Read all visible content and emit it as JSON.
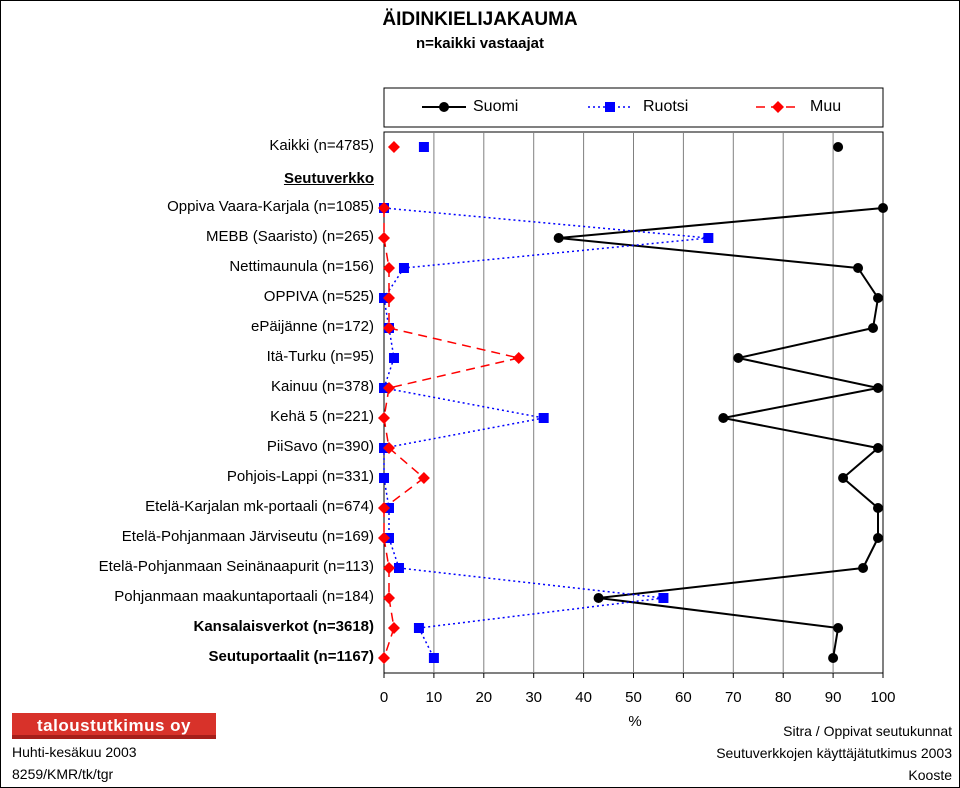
{
  "title": "ÄIDINKIELIJAKAUMA",
  "subtitle": "n=kaikki vastaajat",
  "legend": [
    "Suomi",
    "Ruotsi",
    "Muu"
  ],
  "section_heading": "Seutuverkko",
  "xlabel": "%",
  "x_ticks": [
    "0",
    "10",
    "20",
    "30",
    "40",
    "50",
    "60",
    "70",
    "80",
    "90",
    "100"
  ],
  "logo_text": "taloustutkimus oy",
  "footer": {
    "left_line1": "Huhti-kesäkuu 2003",
    "left_line2": "8259/KMR/tk/tgr",
    "right_line1": "Sitra / Oppivat seutukunnat",
    "right_line2": "Seutuverkkojen käyttäjätutkimus 2003",
    "right_line3": "Kooste"
  },
  "colors": {
    "suomi": "#000000",
    "ruotsi": "#0000ff",
    "muu": "#ff0000",
    "grid": "#808080",
    "logo": "#d8322a"
  },
  "chart_data": {
    "type": "line",
    "orientation": "horizontal",
    "title": "ÄIDINKIELIJAKAUMA",
    "subtitle": "n=kaikki vastaajat",
    "xlabel": "%",
    "xlim": [
      0,
      100
    ],
    "legend_position": "top",
    "grid": true,
    "categories": [
      "Kaikki (n=4785)",
      "Oppiva Vaara-Karjala (n=1085)",
      "MEBB (Saaristo) (n=265)",
      "Nettimaunula (n=156)",
      "OPPIVA (n=525)",
      "ePäijänne (n=172)",
      "Itä-Turku (n=95)",
      "Kainuu (n=378)",
      "Kehä 5 (n=221)",
      "PiiSavo (n=390)",
      "Pohjois-Lappi (n=331)",
      "Etelä-Karjalan mk-portaali (n=674)",
      "Etelä-Pohjanmaan Järviseutu (n=169)",
      "Etelä-Pohjanmaan Seinänaapurit (n=113)",
      "Pohjanmaan maakuntaportaali (n=184)",
      "Kansalaisverkot (n=3618)",
      "Seutuportaalit (n=1167)"
    ],
    "bold_categories": [
      "Kansalaisverkot (n=3618)",
      "Seutuportaalit (n=1167)"
    ],
    "series": [
      {
        "name": "Suomi",
        "color": "#000000",
        "marker": "circle",
        "line": "solid",
        "values": [
          91,
          100,
          35,
          95,
          99,
          98,
          71,
          99,
          68,
          99,
          92,
          99,
          99,
          96,
          43,
          91,
          90
        ]
      },
      {
        "name": "Ruotsi",
        "color": "#0000ff",
        "marker": "square",
        "line": "dotted",
        "values": [
          8,
          0,
          65,
          4,
          0,
          1,
          2,
          0,
          32,
          0,
          0,
          1,
          1,
          3,
          56,
          7,
          10
        ]
      },
      {
        "name": "Muu",
        "color": "#ff0000",
        "marker": "diamond",
        "line": "dashed",
        "values": [
          2,
          0,
          0,
          1,
          1,
          1,
          27,
          1,
          0,
          1,
          8,
          0,
          0,
          1,
          1,
          2,
          0
        ]
      }
    ]
  }
}
